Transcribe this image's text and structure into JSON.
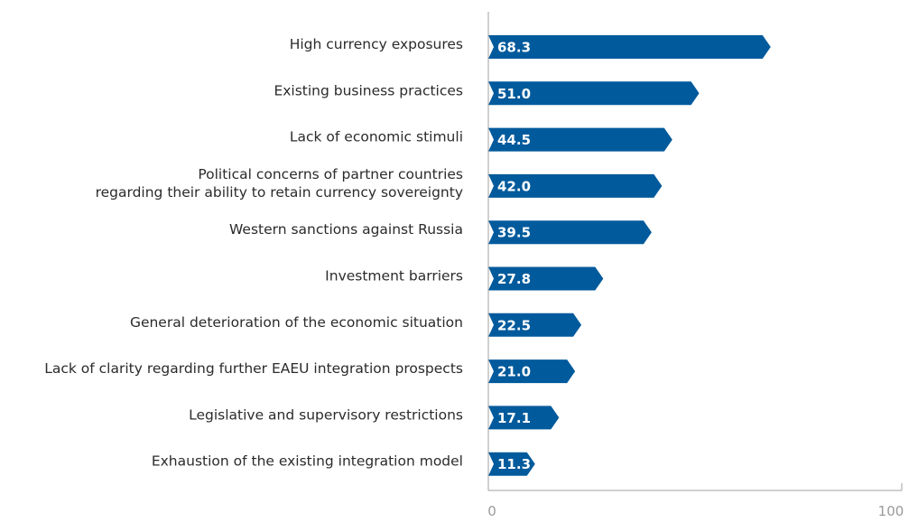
{
  "chart_data": {
    "type": "bar",
    "orientation": "horizontal",
    "categories": [
      [
        "High currency exposures"
      ],
      [
        "Existing business practices"
      ],
      [
        "Lack of economic stimuli"
      ],
      [
        "Political concerns of partner countries",
        "regarding their ability to retain currency sovereignty"
      ],
      [
        "Western sanctions against Russia"
      ],
      [
        "Investment barriers"
      ],
      [
        "General deterioration of the economic situation"
      ],
      [
        "Lack of clarity regarding further EAEU integration prospects"
      ],
      [
        "Legislative and supervisory restrictions"
      ],
      [
        "Exhaustion of the existing integration model"
      ]
    ],
    "values": [
      68.3,
      51.0,
      44.5,
      42.0,
      39.5,
      27.8,
      22.5,
      21.0,
      17.1,
      11.3
    ],
    "value_labels": [
      "68.3",
      "51.0",
      "44.5",
      "42.0",
      "39.5",
      "27.8",
      "22.5",
      "21.0",
      "17.1",
      "11.3"
    ],
    "xlim": [
      0,
      100
    ],
    "xticks": [
      "0",
      "100"
    ],
    "title": "",
    "xlabel": "",
    "ylabel": "",
    "grid": false,
    "legend": "none",
    "bar_color": "#005a9c",
    "axis_color": "#a0a0a0"
  }
}
